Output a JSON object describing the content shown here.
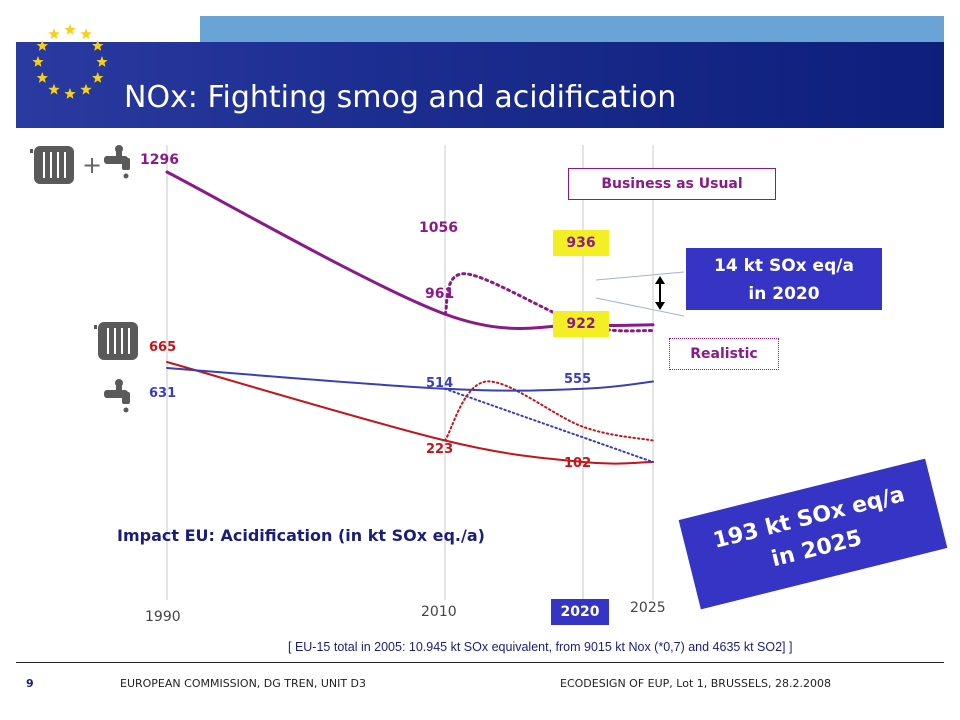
{
  "title": "NOx: Fighting smog and acidification",
  "colors": {
    "header_blue": "#1c2d90",
    "purple": "#8b1a89",
    "red": "#c0161c",
    "blue": "#3a3fb4",
    "highlight": "#f4ef24",
    "callout_blue": "#3534c4"
  },
  "icons": [
    "radiator-icon",
    "tap-icon",
    "plus-icon",
    "double-arrow-icon"
  ],
  "labels": {
    "bau": "Business as Usual",
    "realistic": "Realistic",
    "callout_2020_line1": "14 kt SOx eq/a",
    "callout_2020_line2": "in 2020",
    "callout_2025_line1": "193 kt SOx eq/a",
    "callout_2025_line2": "in 2025",
    "plus": "+",
    "note": "[ EU-15 total in 2005: 10.945 kt SOx equivalent, from 9015 kt Nox (*0,7) and 4635 kt SO2] ]"
  },
  "footer": {
    "page": "9",
    "left": "EUROPEAN COMMISSION, DG TREN, UNIT D3",
    "right": "ECODESIGN OF EUP, Lot 1, BRUSSELS, 28.2.2008"
  },
  "chart_data": {
    "type": "line",
    "title": "Impact  EU: Acidification (in kt SOx eq./a)",
    "x_ticks": [
      "1990",
      "2010",
      "2020",
      "2025"
    ],
    "series": [
      {
        "key": "total_realistic",
        "color": "#8b1a89",
        "style": "solid",
        "points": [
          [
            1990,
            1296
          ],
          [
            2010,
            961
          ],
          [
            2020,
            936
          ],
          [
            2025,
            936
          ]
        ]
      },
      {
        "key": "total_bau",
        "color": "#8b1a89",
        "style": "dotted",
        "points": [
          [
            2010,
            961
          ],
          [
            2011.5,
            1056
          ],
          [
            2020,
            936
          ],
          [
            2025,
            922
          ]
        ]
      },
      {
        "key": "heating_realistic",
        "color": "#c0161c",
        "style": "solid",
        "points": [
          [
            1990,
            665
          ],
          [
            2010,
            223
          ],
          [
            2020,
            102
          ],
          [
            2025,
            102
          ]
        ]
      },
      {
        "key": "heating_bau",
        "color": "#c0161c",
        "style": "dotted",
        "points": [
          [
            2010,
            223
          ],
          [
            2013,
            555
          ],
          [
            2020,
            300
          ],
          [
            2025,
            223
          ]
        ]
      },
      {
        "key": "water_realistic",
        "color": "#3a3fb4",
        "style": "solid",
        "points": [
          [
            1990,
            631
          ],
          [
            2010,
            514
          ],
          [
            2020,
            514
          ],
          [
            2025,
            555
          ]
        ]
      },
      {
        "key": "water_bau",
        "color": "#3a3fb4",
        "style": "dotted",
        "points": [
          [
            2010,
            514
          ],
          [
            2025,
            102
          ]
        ]
      }
    ],
    "data_labels": [
      {
        "text": "1296",
        "color": "#8b1a89"
      },
      {
        "text": "1056",
        "color": "#8b1a89"
      },
      {
        "text": "961",
        "color": "#8b1a89"
      },
      {
        "text": "936",
        "color": "#8b1a89"
      },
      {
        "text": "922",
        "color": "#8b1a89"
      },
      {
        "text": "665",
        "color": "#c0161c"
      },
      {
        "text": "631",
        "color": "#3a3fb4"
      },
      {
        "text": "514",
        "color": "#3a3fb4"
      },
      {
        "text": "555",
        "color": "#3a3fb4"
      },
      {
        "text": "223",
        "color": "#c0161c"
      },
      {
        "text": "102",
        "color": "#c0161c"
      }
    ]
  }
}
